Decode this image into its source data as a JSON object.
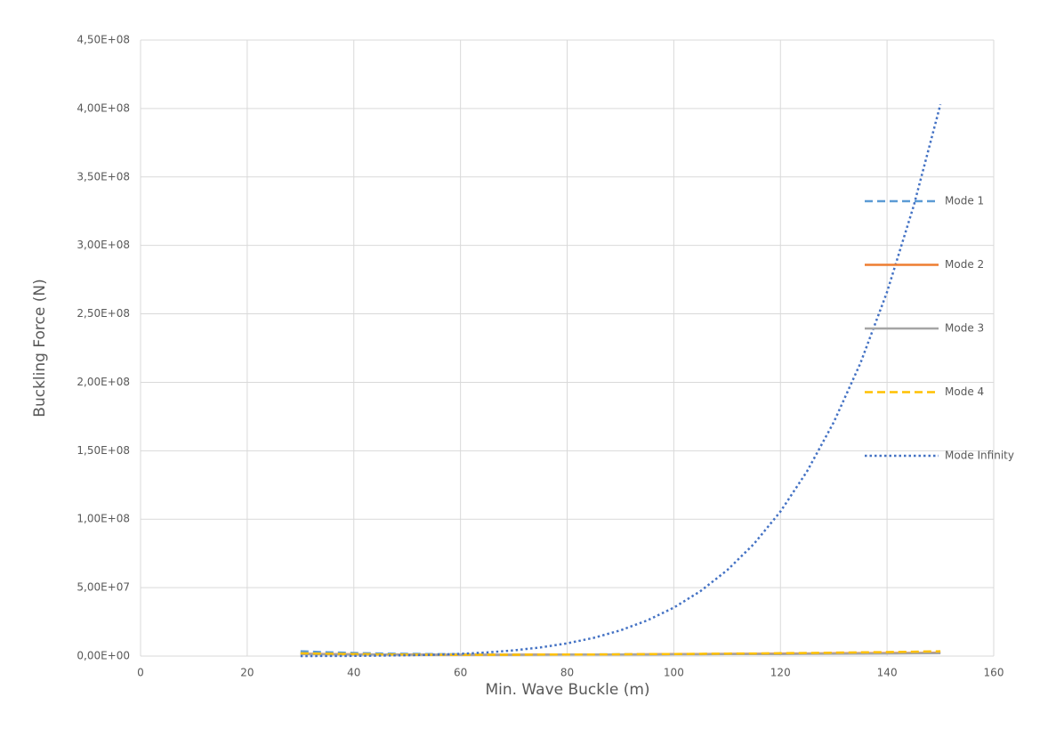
{
  "chart_data": {
    "type": "line",
    "x_label": "Min. Wave Buckle (m)",
    "y_label": "Buckling Force (N)",
    "x": [
      30,
      35,
      40,
      45,
      50,
      55,
      60,
      65,
      70,
      75,
      80,
      85,
      90,
      95,
      100,
      105,
      110,
      115,
      120,
      125,
      130,
      135,
      140,
      145,
      150
    ],
    "series": [
      {
        "name": "Mode 1",
        "color": "#5b9bd5",
        "line_style": "dash",
        "values": [
          3500000,
          2800000,
          2300000,
          1900000,
          1600000,
          1400000,
          1300000,
          1200000,
          1200000,
          1200000,
          1200000,
          1200000,
          1300000,
          1300000,
          1400000,
          1500000,
          1600000,
          1700000,
          1800000,
          1900000,
          2000000,
          2100000,
          2200000,
          2400000,
          2500000
        ]
      },
      {
        "name": "Mode 2",
        "color": "#ed7d31",
        "line_style": "solid",
        "values": [
          1800000,
          1500000,
          1300000,
          1200000,
          1100000,
          1000000,
          1000000,
          1000000,
          1000000,
          1100000,
          1100000,
          1200000,
          1200000,
          1300000,
          1400000,
          1500000,
          1600000,
          1700000,
          1800000,
          1900000,
          2000000,
          2100000,
          2200000,
          2300000,
          2400000
        ]
      },
      {
        "name": "Mode 3",
        "color": "#a5a5a5",
        "line_style": "solid",
        "values": [
          1500000,
          1300000,
          1200000,
          1100000,
          1000000,
          1000000,
          1000000,
          1000000,
          1000000,
          1000000,
          1100000,
          1100000,
          1200000,
          1200000,
          1300000,
          1300000,
          1400000,
          1500000,
          1500000,
          1600000,
          1700000,
          1800000,
          1900000,
          2000000,
          2100000
        ]
      },
      {
        "name": "Mode 4",
        "color": "#ffc000",
        "line_style": "dash",
        "values": [
          2000000,
          1700000,
          1400000,
          1200000,
          1100000,
          1000000,
          1000000,
          1000000,
          1000000,
          1100000,
          1100000,
          1200000,
          1300000,
          1400000,
          1500000,
          1600000,
          1800000,
          1900000,
          2100000,
          2300000,
          2500000,
          2700000,
          2900000,
          3200000,
          3500000
        ]
      },
      {
        "name": "Mode Infinity",
        "color": "#4472c4",
        "line_style": "dot",
        "values": [
          25800,
          65000,
          145000,
          294000,
          553000,
          979000,
          1650000,
          2670000,
          4160000,
          6300000,
          9270000,
          13340000,
          18800000,
          26000000,
          35400000,
          47400000,
          62700000,
          81800000,
          105600000,
          135000000,
          170800000,
          214000000,
          266000000,
          329000000,
          403000000
        ]
      }
    ],
    "xlim": [
      0,
      160
    ],
    "xticks": [
      0,
      20,
      40,
      60,
      80,
      100,
      120,
      140,
      160
    ],
    "ylim": [
      0,
      450000000
    ],
    "yticks": [
      {
        "value": 0,
        "label": "0,00E+00"
      },
      {
        "value": 50000000,
        "label": "5,00E+07"
      },
      {
        "value": 100000000,
        "label": "1,00E+08"
      },
      {
        "value": 150000000,
        "label": "1,50E+08"
      },
      {
        "value": 200000000,
        "label": "2,00E+08"
      },
      {
        "value": 250000000,
        "label": "2,50E+08"
      },
      {
        "value": 300000000,
        "label": "3,00E+08"
      },
      {
        "value": 350000000,
        "label": "3,50E+08"
      },
      {
        "value": 400000000,
        "label": "4,00E+08"
      },
      {
        "value": 450000000,
        "label": "4,50E+08"
      }
    ],
    "grid": true,
    "legend": "right"
  }
}
